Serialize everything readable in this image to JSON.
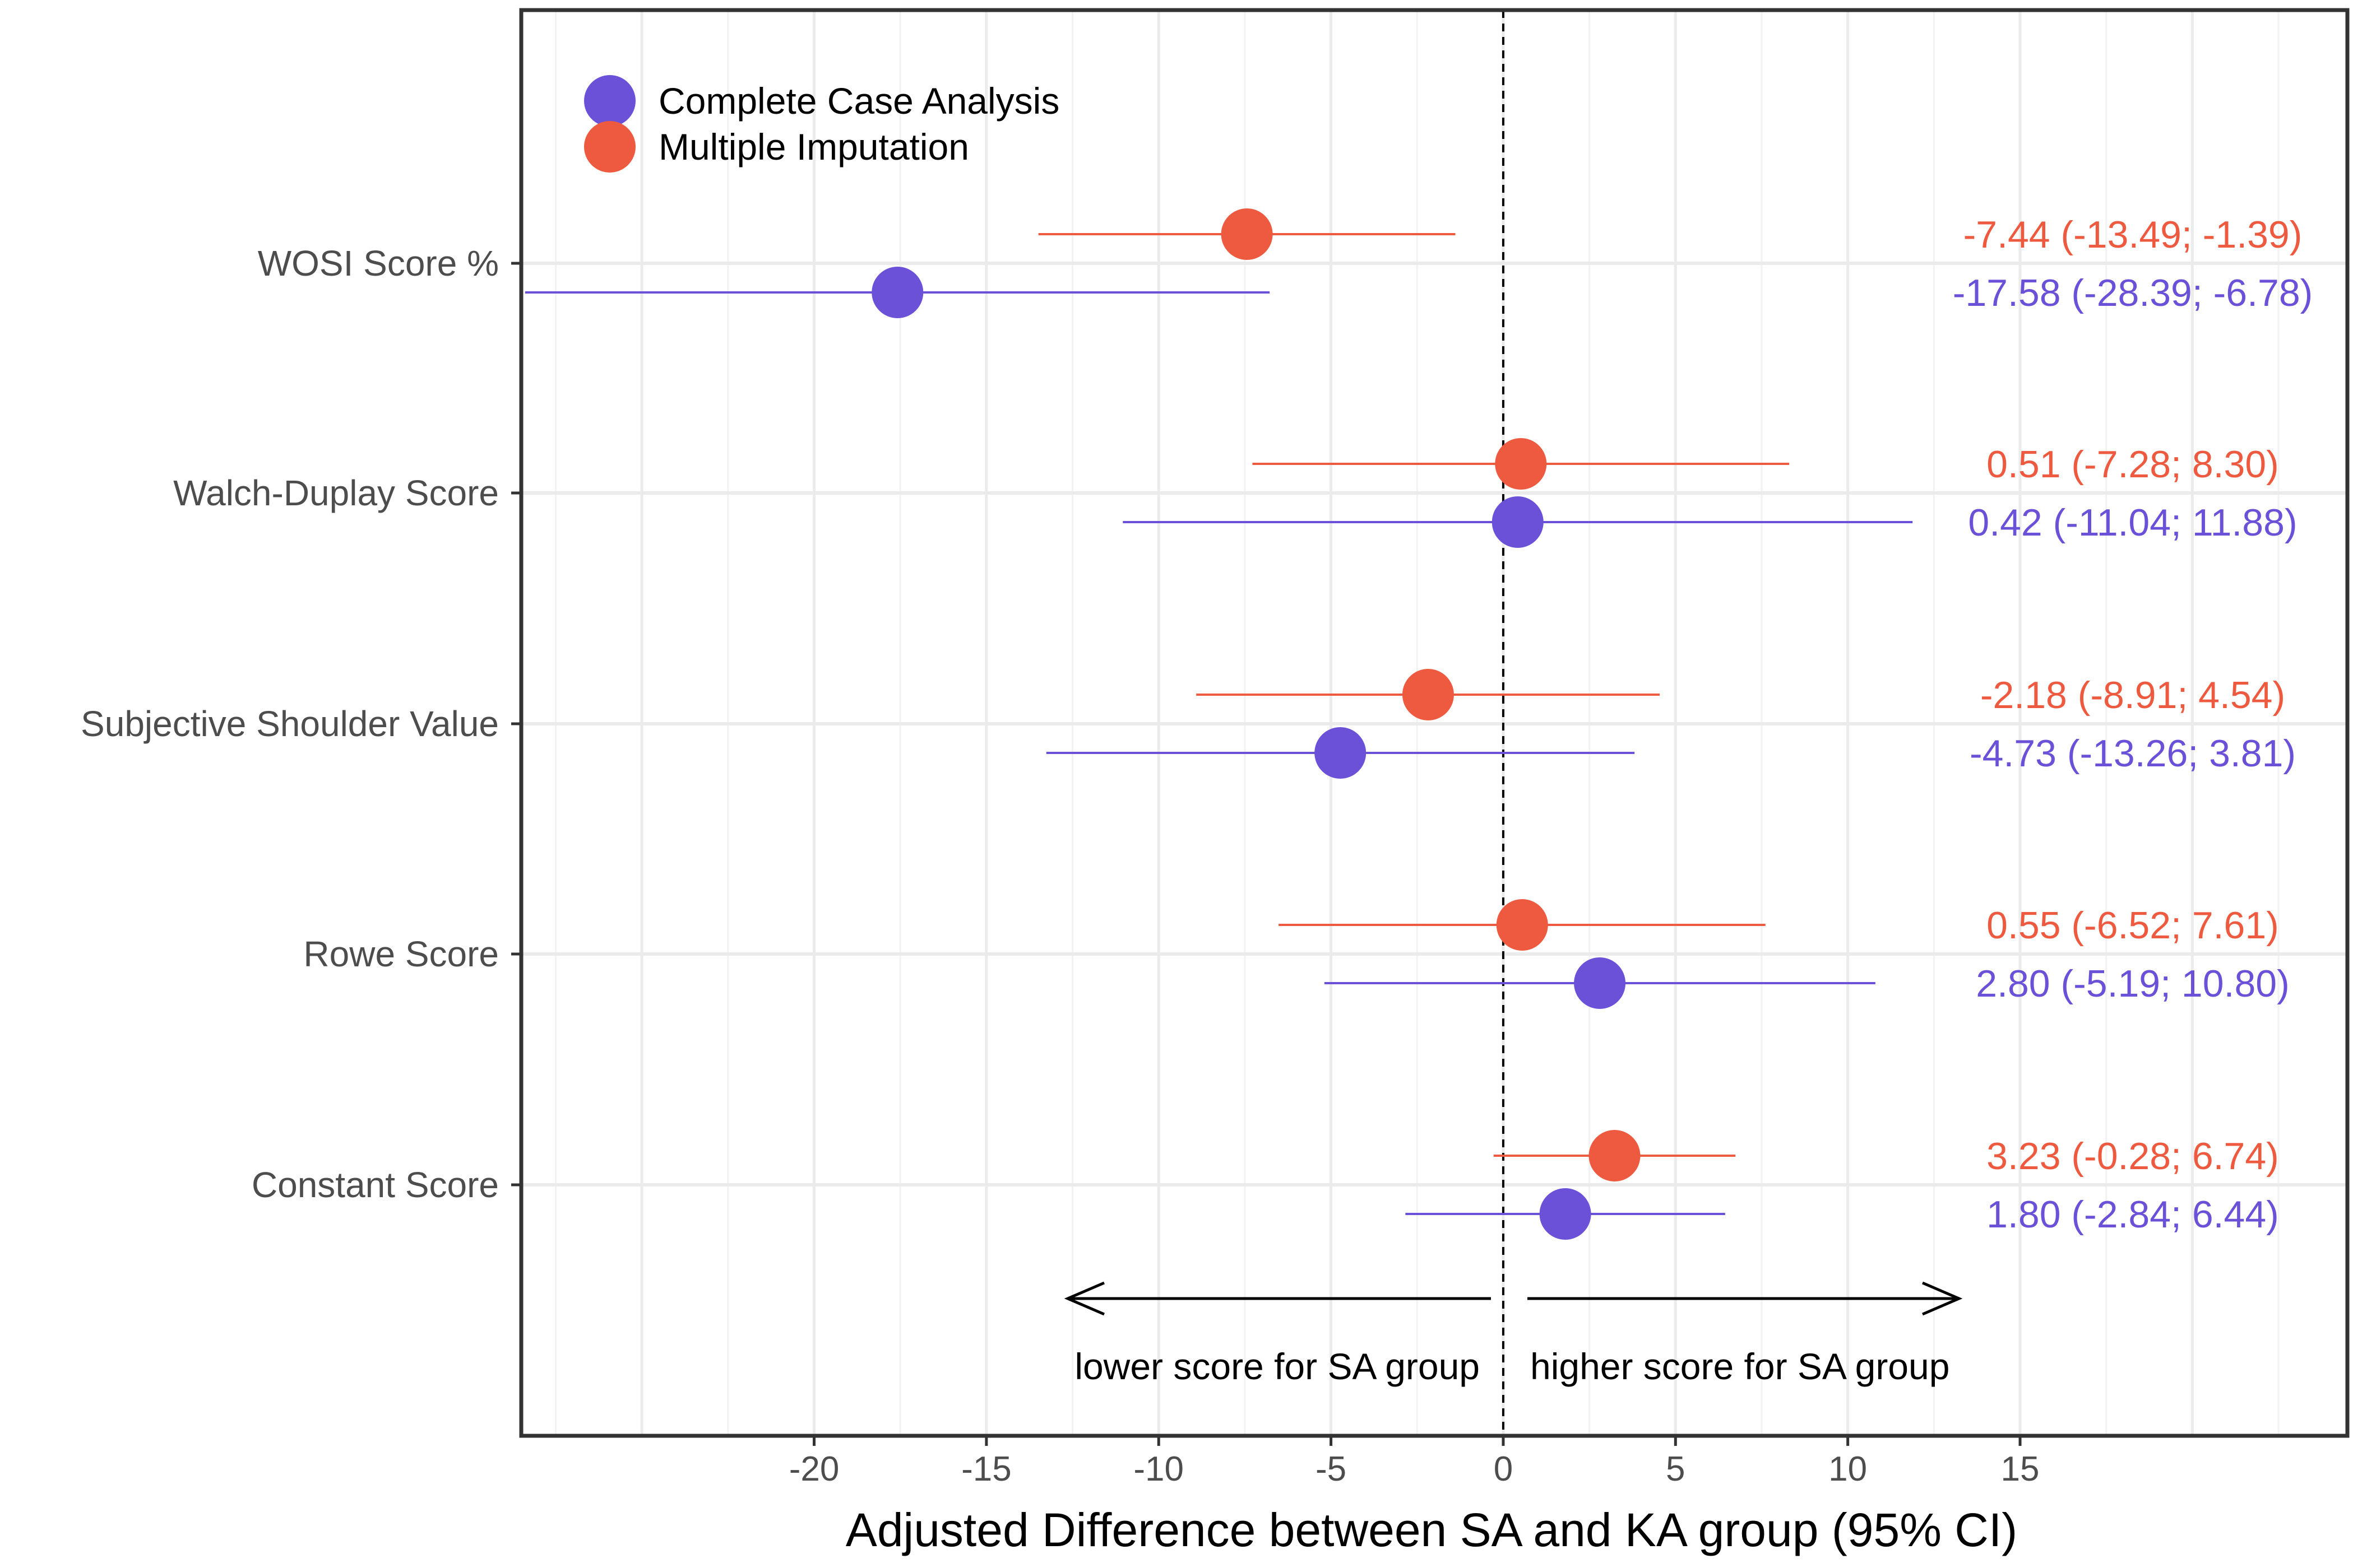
{
  "chart_data": {
    "type": "forest",
    "xlabel": "Adjusted Difference between SA and KA group (95% CI)",
    "xlim": [
      -28.5,
      24.5
    ],
    "xticks": [
      -20,
      -15,
      -10,
      -5,
      0,
      5,
      10,
      15
    ],
    "xtick_labels": [
      "-20",
      "-15",
      "-10",
      "-5",
      "0",
      "5",
      "10",
      "15"
    ],
    "grid": true,
    "reference_line": 0,
    "legend": {
      "position": "top-left",
      "entries": [
        {
          "name": "Complete Case Analysis",
          "color": "#6A51D8"
        },
        {
          "name": "Multiple Imputation",
          "color": "#EE5A3F"
        }
      ]
    },
    "categories": [
      "WOSI Score %",
      "Walch-Duplay Score",
      "Subjective Shoulder Value",
      "Rowe Score",
      "Constant Score"
    ],
    "series": [
      {
        "name": "Multiple Imputation",
        "color": "#EE5A3F",
        "estimates": [
          -7.44,
          0.51,
          -2.18,
          0.55,
          3.23
        ],
        "lower": [
          -13.49,
          -7.28,
          -8.91,
          -6.52,
          -0.28
        ],
        "upper": [
          -1.39,
          8.3,
          4.54,
          7.61,
          6.74
        ],
        "labels": [
          "-7.44 (-13.49; -1.39)",
          "0.51 (-7.28; 8.30)",
          "-2.18 (-8.91; 4.54)",
          "0.55 (-6.52; 7.61)",
          "3.23 (-0.28; 6.74)"
        ]
      },
      {
        "name": "Complete Case Analysis",
        "color": "#6A51D8",
        "estimates": [
          -17.58,
          0.42,
          -4.73,
          2.8,
          1.8
        ],
        "lower": [
          -28.39,
          -11.04,
          -13.26,
          -5.19,
          -2.84
        ],
        "upper": [
          -6.78,
          11.88,
          3.81,
          10.8,
          6.44
        ],
        "labels": [
          "-17.58 (-28.39; -6.78)",
          "0.42 (-11.04; 11.88)",
          "-4.73 (-13.26; 3.81)",
          "2.80 (-5.19; 10.80)",
          "1.80 (-2.84; 6.44)"
        ]
      }
    ],
    "annotations": {
      "left_arrow_label": "lower score for SA group",
      "right_arrow_label": "higher score for SA group"
    }
  }
}
